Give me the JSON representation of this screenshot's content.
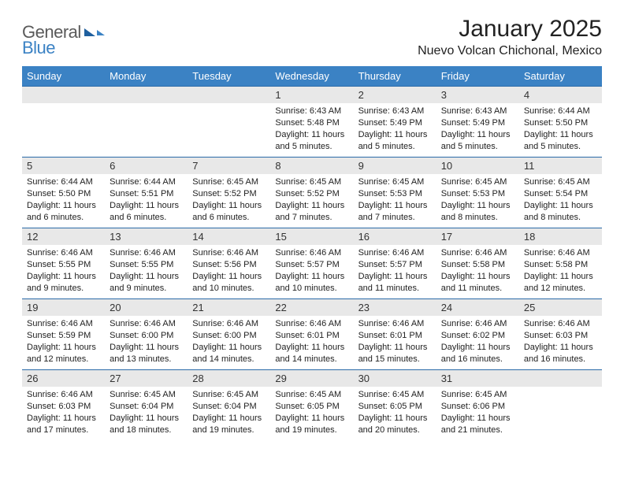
{
  "logo": {
    "text_general": "General",
    "text_blue": "Blue"
  },
  "header": {
    "month_title": "January 2025",
    "location": "Nuevo Volcan Chichonal, Mexico"
  },
  "colors": {
    "header_bg": "#3b82c4",
    "header_text": "#ffffff",
    "row_border": "#2b6aa8",
    "daynum_bg": "#e8e8e8",
    "body_text": "#222222"
  },
  "days_of_week": [
    "Sunday",
    "Monday",
    "Tuesday",
    "Wednesday",
    "Thursday",
    "Friday",
    "Saturday"
  ],
  "weeks": [
    [
      null,
      null,
      null,
      {
        "n": "1",
        "sr": "Sunrise: 6:43 AM",
        "ss": "Sunset: 5:48 PM",
        "dl": "Daylight: 11 hours and 5 minutes."
      },
      {
        "n": "2",
        "sr": "Sunrise: 6:43 AM",
        "ss": "Sunset: 5:49 PM",
        "dl": "Daylight: 11 hours and 5 minutes."
      },
      {
        "n": "3",
        "sr": "Sunrise: 6:43 AM",
        "ss": "Sunset: 5:49 PM",
        "dl": "Daylight: 11 hours and 5 minutes."
      },
      {
        "n": "4",
        "sr": "Sunrise: 6:44 AM",
        "ss": "Sunset: 5:50 PM",
        "dl": "Daylight: 11 hours and 5 minutes."
      }
    ],
    [
      {
        "n": "5",
        "sr": "Sunrise: 6:44 AM",
        "ss": "Sunset: 5:50 PM",
        "dl": "Daylight: 11 hours and 6 minutes."
      },
      {
        "n": "6",
        "sr": "Sunrise: 6:44 AM",
        "ss": "Sunset: 5:51 PM",
        "dl": "Daylight: 11 hours and 6 minutes."
      },
      {
        "n": "7",
        "sr": "Sunrise: 6:45 AM",
        "ss": "Sunset: 5:52 PM",
        "dl": "Daylight: 11 hours and 6 minutes."
      },
      {
        "n": "8",
        "sr": "Sunrise: 6:45 AM",
        "ss": "Sunset: 5:52 PM",
        "dl": "Daylight: 11 hours and 7 minutes."
      },
      {
        "n": "9",
        "sr": "Sunrise: 6:45 AM",
        "ss": "Sunset: 5:53 PM",
        "dl": "Daylight: 11 hours and 7 minutes."
      },
      {
        "n": "10",
        "sr": "Sunrise: 6:45 AM",
        "ss": "Sunset: 5:53 PM",
        "dl": "Daylight: 11 hours and 8 minutes."
      },
      {
        "n": "11",
        "sr": "Sunrise: 6:45 AM",
        "ss": "Sunset: 5:54 PM",
        "dl": "Daylight: 11 hours and 8 minutes."
      }
    ],
    [
      {
        "n": "12",
        "sr": "Sunrise: 6:46 AM",
        "ss": "Sunset: 5:55 PM",
        "dl": "Daylight: 11 hours and 9 minutes."
      },
      {
        "n": "13",
        "sr": "Sunrise: 6:46 AM",
        "ss": "Sunset: 5:55 PM",
        "dl": "Daylight: 11 hours and 9 minutes."
      },
      {
        "n": "14",
        "sr": "Sunrise: 6:46 AM",
        "ss": "Sunset: 5:56 PM",
        "dl": "Daylight: 11 hours and 10 minutes."
      },
      {
        "n": "15",
        "sr": "Sunrise: 6:46 AM",
        "ss": "Sunset: 5:57 PM",
        "dl": "Daylight: 11 hours and 10 minutes."
      },
      {
        "n": "16",
        "sr": "Sunrise: 6:46 AM",
        "ss": "Sunset: 5:57 PM",
        "dl": "Daylight: 11 hours and 11 minutes."
      },
      {
        "n": "17",
        "sr": "Sunrise: 6:46 AM",
        "ss": "Sunset: 5:58 PM",
        "dl": "Daylight: 11 hours and 11 minutes."
      },
      {
        "n": "18",
        "sr": "Sunrise: 6:46 AM",
        "ss": "Sunset: 5:58 PM",
        "dl": "Daylight: 11 hours and 12 minutes."
      }
    ],
    [
      {
        "n": "19",
        "sr": "Sunrise: 6:46 AM",
        "ss": "Sunset: 5:59 PM",
        "dl": "Daylight: 11 hours and 12 minutes."
      },
      {
        "n": "20",
        "sr": "Sunrise: 6:46 AM",
        "ss": "Sunset: 6:00 PM",
        "dl": "Daylight: 11 hours and 13 minutes."
      },
      {
        "n": "21",
        "sr": "Sunrise: 6:46 AM",
        "ss": "Sunset: 6:00 PM",
        "dl": "Daylight: 11 hours and 14 minutes."
      },
      {
        "n": "22",
        "sr": "Sunrise: 6:46 AM",
        "ss": "Sunset: 6:01 PM",
        "dl": "Daylight: 11 hours and 14 minutes."
      },
      {
        "n": "23",
        "sr": "Sunrise: 6:46 AM",
        "ss": "Sunset: 6:01 PM",
        "dl": "Daylight: 11 hours and 15 minutes."
      },
      {
        "n": "24",
        "sr": "Sunrise: 6:46 AM",
        "ss": "Sunset: 6:02 PM",
        "dl": "Daylight: 11 hours and 16 minutes."
      },
      {
        "n": "25",
        "sr": "Sunrise: 6:46 AM",
        "ss": "Sunset: 6:03 PM",
        "dl": "Daylight: 11 hours and 16 minutes."
      }
    ],
    [
      {
        "n": "26",
        "sr": "Sunrise: 6:46 AM",
        "ss": "Sunset: 6:03 PM",
        "dl": "Daylight: 11 hours and 17 minutes."
      },
      {
        "n": "27",
        "sr": "Sunrise: 6:45 AM",
        "ss": "Sunset: 6:04 PM",
        "dl": "Daylight: 11 hours and 18 minutes."
      },
      {
        "n": "28",
        "sr": "Sunrise: 6:45 AM",
        "ss": "Sunset: 6:04 PM",
        "dl": "Daylight: 11 hours and 19 minutes."
      },
      {
        "n": "29",
        "sr": "Sunrise: 6:45 AM",
        "ss": "Sunset: 6:05 PM",
        "dl": "Daylight: 11 hours and 19 minutes."
      },
      {
        "n": "30",
        "sr": "Sunrise: 6:45 AM",
        "ss": "Sunset: 6:05 PM",
        "dl": "Daylight: 11 hours and 20 minutes."
      },
      {
        "n": "31",
        "sr": "Sunrise: 6:45 AM",
        "ss": "Sunset: 6:06 PM",
        "dl": "Daylight: 11 hours and 21 minutes."
      },
      null
    ]
  ]
}
